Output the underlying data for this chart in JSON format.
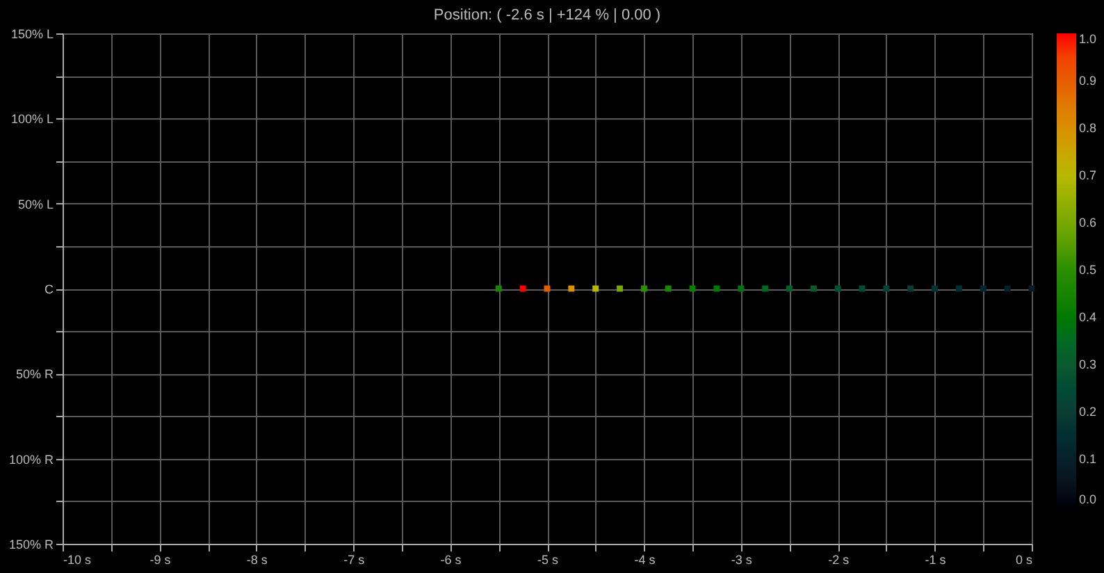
{
  "chart_data": {
    "type": "scatter",
    "title": "Position: (  -2.6 s  |  +124 %  |   0.00     )",
    "x": [
      -5.5,
      -5.25,
      -5.0,
      -4.75,
      -4.5,
      -4.25,
      -4.0,
      -3.75,
      -3.5,
      -3.25,
      -3.0,
      -2.75,
      -2.5,
      -2.25,
      -2.0,
      -1.75,
      -1.5,
      -1.25,
      -1.0,
      -0.75,
      -0.5,
      -0.25,
      0
    ],
    "values": [
      0,
      0,
      0,
      0,
      0,
      0,
      0,
      0,
      0,
      0,
      0,
      0,
      0,
      0,
      0,
      0,
      0,
      0,
      0,
      0,
      0,
      0,
      0
    ],
    "cvalues": [
      0.45,
      1.0,
      0.9,
      0.8,
      0.7,
      0.6,
      0.5,
      0.45,
      0.42,
      0.4,
      0.38,
      0.35,
      0.32,
      0.3,
      0.27,
      0.25,
      0.22,
      0.2,
      0.17,
      0.15,
      0.12,
      0.1,
      0.08
    ],
    "marker": "square",
    "xlim": [
      -10,
      0
    ],
    "xticks": [
      {
        "value": -10,
        "label": "-10 s"
      },
      {
        "value": -9.5,
        "label": null
      },
      {
        "value": -9,
        "label": "-9 s"
      },
      {
        "value": -8.5,
        "label": null
      },
      {
        "value": -8,
        "label": "-8 s"
      },
      {
        "value": -7.5,
        "label": null
      },
      {
        "value": -7,
        "label": "-7 s"
      },
      {
        "value": -6.5,
        "label": null
      },
      {
        "value": -6,
        "label": "-6 s"
      },
      {
        "value": -5.5,
        "label": null
      },
      {
        "value": -5,
        "label": "-5 s"
      },
      {
        "value": -4.5,
        "label": null
      },
      {
        "value": -4,
        "label": "-4 s"
      },
      {
        "value": -3.5,
        "label": null
      },
      {
        "value": -3,
        "label": "-3 s"
      },
      {
        "value": -2.5,
        "label": null
      },
      {
        "value": -2,
        "label": "-2 s"
      },
      {
        "value": -1.5,
        "label": null
      },
      {
        "value": -1,
        "label": "-1 s"
      },
      {
        "value": -0.5,
        "label": null
      },
      {
        "value": 0,
        "label": "0 s"
      }
    ],
    "ylim": [
      -150,
      150
    ],
    "yticks": [
      {
        "value": 150,
        "label": "150% L"
      },
      {
        "value": 125,
        "label": null
      },
      {
        "value": 100,
        "label": "100% L"
      },
      {
        "value": 75,
        "label": null
      },
      {
        "value": 50,
        "label": "50% L"
      },
      {
        "value": 25,
        "label": null
      },
      {
        "value": 0,
        "label": "C"
      },
      {
        "value": -25,
        "label": null
      },
      {
        "value": -50,
        "label": "50% R"
      },
      {
        "value": -75,
        "label": null
      },
      {
        "value": -100,
        "label": "100% R"
      },
      {
        "value": -125,
        "label": null
      },
      {
        "value": -150,
        "label": "150% R"
      }
    ],
    "clim": [
      0,
      1
    ],
    "cticks": [
      {
        "value": 0,
        "label": "0.0"
      },
      {
        "value": 0.1,
        "label": "0.1"
      },
      {
        "value": 0.2,
        "label": "0.2"
      },
      {
        "value": 0.3,
        "label": "0.3"
      },
      {
        "value": 0.4,
        "label": "0.4"
      },
      {
        "value": 0.5,
        "label": "0.5"
      },
      {
        "value": 0.6,
        "label": "0.6"
      },
      {
        "value": 0.7,
        "label": "0.7"
      },
      {
        "value": 0.8,
        "label": "0.8"
      },
      {
        "value": 0.9,
        "label": "0.9"
      },
      {
        "value": 1,
        "label": "1.0"
      }
    ],
    "grid": true
  }
}
